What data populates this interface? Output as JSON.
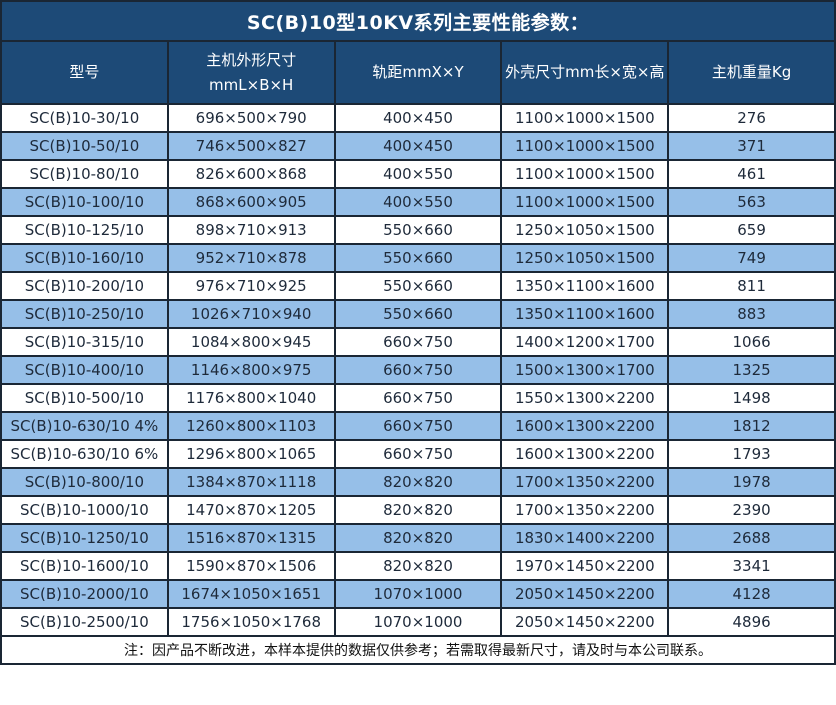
{
  "title": "SC(B)10型10KV系列主要性能参数：",
  "table": {
    "headers": [
      {
        "lines": [
          "型号"
        ]
      },
      {
        "lines": [
          "主机外形尺寸",
          "mmL×B×H"
        ]
      },
      {
        "lines": [
          "轨距mmX×Y"
        ]
      },
      {
        "lines": [
          "外壳尺寸mm长×宽×高"
        ]
      },
      {
        "lines": [
          "主机重量Kg"
        ]
      }
    ],
    "rows": [
      [
        "SC(B)10-30/10",
        "696×500×790",
        "400×450",
        "1100×1000×1500",
        "276"
      ],
      [
        "SC(B)10-50/10",
        "746×500×827",
        "400×450",
        "1100×1000×1500",
        "371"
      ],
      [
        "SC(B)10-80/10",
        "826×600×868",
        "400×550",
        "1100×1000×1500",
        "461"
      ],
      [
        "SC(B)10-100/10",
        "868×600×905",
        "400×550",
        "1100×1000×1500",
        "563"
      ],
      [
        "SC(B)10-125/10",
        "898×710×913",
        "550×660",
        "1250×1050×1500",
        "659"
      ],
      [
        "SC(B)10-160/10",
        "952×710×878",
        "550×660",
        "1250×1050×1500",
        "749"
      ],
      [
        "SC(B)10-200/10",
        "976×710×925",
        "550×660",
        "1350×1100×1600",
        "811"
      ],
      [
        "SC(B)10-250/10",
        "1026×710×940",
        "550×660",
        "1350×1100×1600",
        "883"
      ],
      [
        "SC(B)10-315/10",
        "1084×800×945",
        "660×750",
        "1400×1200×1700",
        "1066"
      ],
      [
        "SC(B)10-400/10",
        "1146×800×975",
        "660×750",
        "1500×1300×1700",
        "1325"
      ],
      [
        "SC(B)10-500/10",
        "1176×800×1040",
        "660×750",
        "1550×1300×2200",
        "1498"
      ],
      [
        "SC(B)10-630/10 4%",
        "1260×800×1103",
        "660×750",
        "1600×1300×2200",
        "1812"
      ],
      [
        "SC(B)10-630/10 6%",
        "1296×800×1065",
        "660×750",
        "1600×1300×2200",
        "1793"
      ],
      [
        "SC(B)10-800/10",
        "1384×870×1118",
        "820×820",
        "1700×1350×2200",
        "1978"
      ],
      [
        "SC(B)10-1000/10",
        "1470×870×1205",
        "820×820",
        "1700×1350×2200",
        "2390"
      ],
      [
        "SC(B)10-1250/10",
        "1516×870×1315",
        "820×820",
        "1830×1400×2200",
        "2688"
      ],
      [
        "SC(B)10-1600/10",
        "1590×870×1506",
        "820×820",
        "1970×1450×2200",
        "3341"
      ],
      [
        "SC(B)10-2000/10",
        "1674×1050×1651",
        "1070×1000",
        "2050×1450×2200",
        "4128"
      ],
      [
        "SC(B)10-2500/10",
        "1756×1050×1768",
        "1070×1000",
        "2050×1450×2200",
        "4896"
      ]
    ]
  },
  "footnote": "注：因产品不断改进，本样本提供的数据仅供参考；若需取得最新尺寸，请及时与本公司联系。",
  "colors": {
    "header_bg": "#1d4a77",
    "header_text": "#ffffff",
    "row_bg": "#ffffff",
    "row_alt_bg": "#96bfe8",
    "border_color": "#1a2634",
    "cell_text": "#1e2a3a",
    "note_text": "#111111"
  }
}
